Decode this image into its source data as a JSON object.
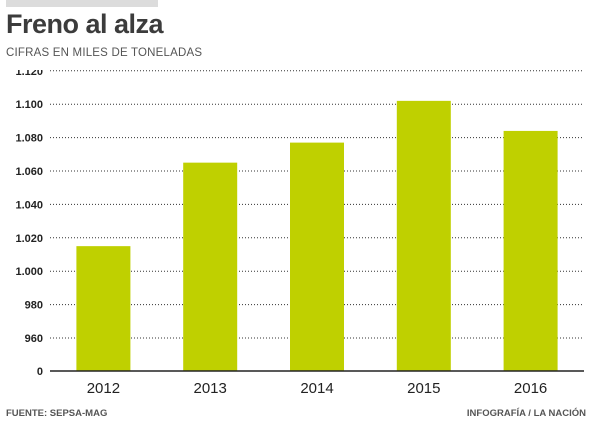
{
  "title": "Freno al alza",
  "subtitle": "CIFRAS EN MILES DE TONELADAS",
  "source": "FUENTE: SEPSA-MAG",
  "credit": "INFOGRAFÍA / LA NACIÓN",
  "colors": {
    "bar": "#bfd000",
    "grid": "#333333",
    "axis": "#222222"
  },
  "chart_data": {
    "type": "bar",
    "categories": [
      "2012",
      "2013",
      "2014",
      "2015",
      "2016"
    ],
    "values": [
      1015,
      1065,
      1077,
      1102,
      1084
    ],
    "yticks": [
      0,
      960,
      980,
      1000,
      1020,
      1040,
      1060,
      1080,
      1100,
      1120
    ],
    "ytick_labels": [
      "0",
      "960",
      "980",
      "1.000",
      "1.020",
      "1.040",
      "1.060",
      "1.080",
      "1.100",
      "1.120"
    ],
    "axis_break": "y-axis starts at 0 then jumps to 960",
    "grid": "horizontal dotted",
    "legend": "none"
  }
}
